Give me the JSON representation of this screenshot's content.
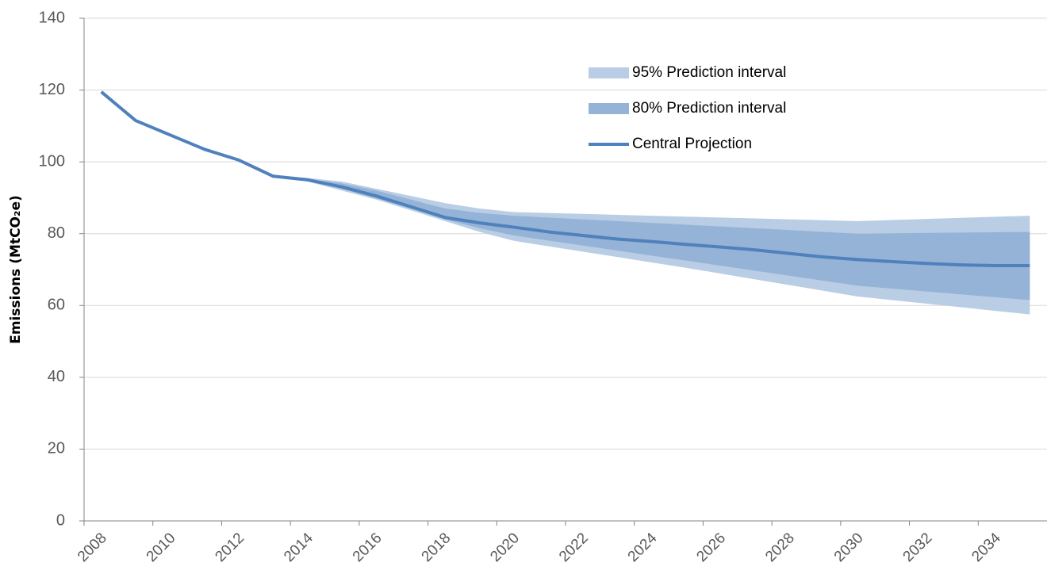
{
  "chart_data": {
    "type": "line",
    "y_label": "Emissions (MtCO₂e)",
    "categories": [
      "2008",
      null,
      "2010",
      null,
      "2012",
      null,
      "2014",
      null,
      "2016",
      null,
      "2018",
      null,
      "2020",
      null,
      "2022",
      null,
      "2024",
      null,
      "2026",
      null,
      "2028",
      null,
      "2030",
      null,
      "2032",
      null,
      "2034",
      null
    ],
    "ylim": [
      0,
      140
    ],
    "yticks": [
      0,
      20,
      40,
      60,
      80,
      100,
      120,
      140
    ],
    "grid": true,
    "bands": [
      {
        "name": "95% Prediction interval",
        "color": "#b9cde5",
        "upper": [
          null,
          null,
          null,
          null,
          null,
          96,
          95.5,
          94.5,
          92.5,
          90.5,
          88.5,
          87,
          86,
          85.75,
          85.5,
          85.25,
          85,
          84.75,
          84.5,
          84.25,
          84,
          83.75,
          83.5,
          83.8,
          84.1,
          84.4,
          84.7,
          85
        ],
        "lower": [
          null,
          null,
          null,
          null,
          null,
          96,
          94.5,
          92,
          89.5,
          86.5,
          83.5,
          80.5,
          78,
          76.5,
          75,
          73.5,
          72,
          70.5,
          68.9,
          67.3,
          65.7,
          64.1,
          62.5,
          61.5,
          60.5,
          59.5,
          58.5,
          57.5
        ]
      },
      {
        "name": "80% Prediction interval",
        "color": "#95b3d7",
        "upper": [
          null,
          null,
          null,
          null,
          null,
          96,
          95.2,
          94,
          92,
          89.5,
          87,
          85.8,
          85,
          84.5,
          84,
          83.5,
          83,
          82.5,
          82,
          81.5,
          81,
          80.5,
          80,
          80.1,
          80.2,
          80.3,
          80.4,
          80.5
        ],
        "lower": [
          null,
          null,
          null,
          null,
          null,
          96,
          94.8,
          92.5,
          89.8,
          87,
          84,
          81.5,
          79.5,
          78.1,
          76.7,
          75.3,
          73.9,
          72.5,
          71.1,
          69.7,
          68.3,
          66.9,
          65.5,
          64.7,
          63.9,
          63.1,
          62.3,
          61.5
        ]
      }
    ],
    "series": [
      {
        "name": "Central Projection",
        "color": "#4f81bd",
        "values": [
          119.5,
          111.5,
          107.5,
          103.5,
          100.5,
          96,
          95,
          93,
          90.5,
          87.5,
          84.5,
          83,
          81.8,
          80.5,
          79.5,
          78.5,
          77.8,
          77,
          76.3,
          75.5,
          74.5,
          73.5,
          72.8,
          72.2,
          71.7,
          71.3,
          71.1,
          71.1
        ]
      }
    ]
  }
}
